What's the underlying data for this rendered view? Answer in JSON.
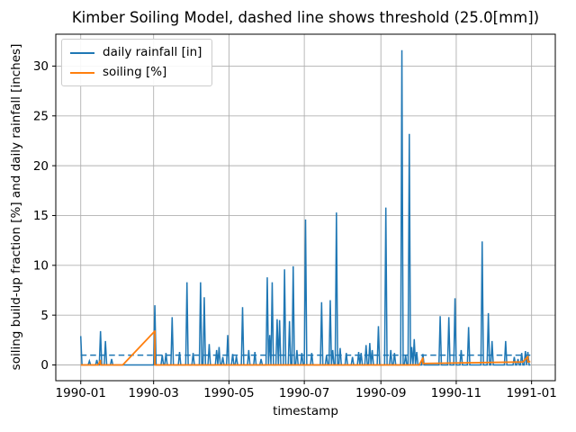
{
  "chart_data": {
    "type": "line",
    "title": "Kimber Soiling Model, dashed line shows threshold (25.0[mm])",
    "xlabel": "timestamp",
    "ylabel": "soiling build-up fraction [%] and daily rainfall [inches]",
    "x_range": [
      "1990-01-01",
      "1990-12-31"
    ],
    "x_tick_labels": [
      "1990-01",
      "1990-03",
      "1990-05",
      "1990-07",
      "1990-09",
      "1990-11",
      "1991-01"
    ],
    "x_tick_days": [
      0,
      59,
      120,
      181,
      243,
      304,
      365
    ],
    "y_ticks": [
      0,
      5,
      10,
      15,
      20,
      25,
      30
    ],
    "ylim": [
      -1.58,
      33.2
    ],
    "xlim_days": [
      -20.2,
      384.2
    ],
    "grid": true,
    "legend_position": "upper-left",
    "threshold_mm": 25.0,
    "threshold_inches": 0.984,
    "series": [
      {
        "name": "daily rainfall [in]",
        "color": "#1f77b4",
        "style": "solid",
        "unit": "inches",
        "baseline": 0,
        "events": [
          [
            "1990-01-01",
            2.9
          ],
          [
            "1990-01-08",
            0.4
          ],
          [
            "1990-01-14",
            0.5
          ],
          [
            "1990-01-17",
            3.4
          ],
          [
            "1990-01-21",
            2.4
          ],
          [
            "1990-01-26",
            0.6
          ],
          [
            "1990-03-02",
            6.0
          ],
          [
            "1990-03-08",
            1.0
          ],
          [
            "1990-03-11",
            1.2
          ],
          [
            "1990-03-16",
            4.8
          ],
          [
            "1990-03-22",
            1.3
          ],
          [
            "1990-03-28",
            8.3
          ],
          [
            "1990-04-02",
            1.2
          ],
          [
            "1990-04-08",
            8.3
          ],
          [
            "1990-04-11",
            6.8
          ],
          [
            "1990-04-15",
            2.1
          ],
          [
            "1990-04-21",
            1.5
          ],
          [
            "1990-04-23",
            1.8
          ],
          [
            "1990-04-26",
            0.8
          ],
          [
            "1990-04-30",
            3.0
          ],
          [
            "1990-05-04",
            1.1
          ],
          [
            "1990-05-07",
            0.9
          ],
          [
            "1990-05-12",
            5.8
          ],
          [
            "1990-05-17",
            1.5
          ],
          [
            "1990-05-22",
            1.3
          ],
          [
            "1990-05-27",
            0.6
          ],
          [
            "1990-06-01",
            8.8
          ],
          [
            "1990-06-03",
            3.0
          ],
          [
            "1990-06-05",
            8.3
          ],
          [
            "1990-06-09",
            4.6
          ],
          [
            "1990-06-11",
            4.5
          ],
          [
            "1990-06-15",
            9.6
          ],
          [
            "1990-06-19",
            4.4
          ],
          [
            "1990-06-22",
            9.9
          ],
          [
            "1990-06-25",
            1.5
          ],
          [
            "1990-06-29",
            1.2
          ],
          [
            "1990-07-02",
            14.6
          ],
          [
            "1990-07-07",
            1.2
          ],
          [
            "1990-07-15",
            6.3
          ],
          [
            "1990-07-19",
            1.0
          ],
          [
            "1990-07-22",
            6.5
          ],
          [
            "1990-07-24",
            1.5
          ],
          [
            "1990-07-27",
            15.3
          ],
          [
            "1990-07-30",
            1.7
          ],
          [
            "1990-08-04",
            1.2
          ],
          [
            "1990-08-09",
            0.8
          ],
          [
            "1990-08-14",
            1.3
          ],
          [
            "1990-08-16",
            1.2
          ],
          [
            "1990-08-20",
            2.0
          ],
          [
            "1990-08-23",
            2.2
          ],
          [
            "1990-08-25",
            1.5
          ],
          [
            "1990-08-30",
            3.9
          ],
          [
            "1990-09-05",
            15.8
          ],
          [
            "1990-09-09",
            1.5
          ],
          [
            "1990-09-12",
            1.2
          ],
          [
            "1990-09-18",
            31.6
          ],
          [
            "1990-09-21",
            1.0
          ],
          [
            "1990-09-24",
            23.2
          ],
          [
            "1990-09-26",
            1.8
          ],
          [
            "1990-09-28",
            2.6
          ],
          [
            "1990-09-30",
            1.3
          ],
          [
            "1990-10-05",
            1.1
          ],
          [
            "1990-10-19",
            4.9
          ],
          [
            "1990-10-26",
            4.8
          ],
          [
            "1990-10-31",
            6.7
          ],
          [
            "1990-11-05",
            1.5
          ],
          [
            "1990-11-11",
            3.8
          ],
          [
            "1990-11-22",
            12.4
          ],
          [
            "1990-11-27",
            5.2
          ],
          [
            "1990-11-30",
            2.4
          ],
          [
            "1990-12-11",
            2.4
          ],
          [
            "1990-12-18",
            0.8
          ],
          [
            "1990-12-21",
            0.6
          ],
          [
            "1990-12-24",
            1.2
          ],
          [
            "1990-12-27",
            1.4
          ],
          [
            "1990-12-29",
            1.3
          ]
        ]
      },
      {
        "name": "soiling [%]",
        "color": "#ff7f0e",
        "style": "solid",
        "unit": "%",
        "points": [
          [
            "1990-01-01",
            0
          ],
          [
            "1990-01-15",
            0
          ],
          [
            "1990-01-17",
            0.45
          ],
          [
            "1990-01-17",
            0
          ],
          [
            "1990-02-04",
            0
          ],
          [
            "1990-03-02",
            3.4
          ],
          [
            "1990-03-02",
            0
          ],
          [
            "1990-09-28",
            0
          ],
          [
            "1990-10-02",
            0
          ],
          [
            "1990-10-05",
            0.7
          ],
          [
            "1990-10-05",
            0.15
          ],
          [
            "1990-12-25",
            0.3
          ],
          [
            "1990-12-29",
            0.85
          ],
          [
            "1990-12-29",
            0.3
          ],
          [
            "1990-12-31",
            0.35
          ]
        ]
      },
      {
        "name": "threshold",
        "color": "#1f77b4",
        "style": "dashed",
        "value_inches": 0.984
      }
    ]
  },
  "legend": {
    "entries": [
      {
        "label": "daily rainfall [in]",
        "color": "#1f77b4"
      },
      {
        "label": "soiling [%]",
        "color": "#ff7f0e"
      }
    ]
  },
  "colors": {
    "rainfall": "#1f77b4",
    "soiling": "#ff7f0e",
    "grid": "#b0b0b0",
    "spine": "#000000",
    "text": "#000000",
    "background": "#ffffff"
  }
}
